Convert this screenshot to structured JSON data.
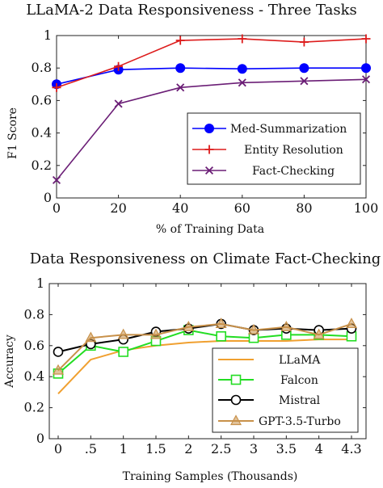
{
  "chart_data": [
    {
      "type": "line",
      "title": "LLaMA-2 Data Responsiveness - Three Tasks",
      "xlabel": "% of Training Data",
      "ylabel": "F1 Score",
      "xlim": [
        0,
        100
      ],
      "ylim": [
        0,
        1
      ],
      "xticks": [
        "0",
        "20",
        "40",
        "60",
        "80",
        "100"
      ],
      "yticks": [
        "0",
        "0.2",
        "0.4",
        "0.6",
        "0.8",
        "1"
      ],
      "x": [
        0,
        20,
        40,
        60,
        80,
        100
      ],
      "grid": false,
      "legend_position": "bottom-right",
      "series": [
        {
          "name": "Med-Summarization",
          "color": "#0000ff",
          "marker": "circle",
          "values": [
            0.7,
            0.79,
            0.8,
            0.795,
            0.8,
            0.8
          ]
        },
        {
          "name": "Entity Resolution",
          "color": "#dd1c1c",
          "marker": "plus",
          "values": [
            0.68,
            0.81,
            0.97,
            0.98,
            0.96,
            0.98
          ]
        },
        {
          "name": "Fact-Checking",
          "color": "#6b1e76",
          "marker": "cross",
          "values": [
            0.11,
            0.58,
            0.68,
            0.71,
            0.72,
            0.73
          ]
        }
      ]
    },
    {
      "type": "line",
      "title": "Data Responsiveness on Climate Fact-Checking",
      "xlabel": "Training Samples (Thousands)",
      "ylabel": "Accuracy",
      "ylim": [
        0,
        1
      ],
      "categories": [
        "0",
        ".5",
        "1",
        "1.5",
        "2",
        "2.5",
        "3",
        "3.5",
        "4",
        "4.3"
      ],
      "yticks": [
        "0",
        "0.2",
        "0.4",
        "0.6",
        "0.8",
        "1"
      ],
      "grid": false,
      "legend_position": "bottom-right",
      "series": [
        {
          "name": "LLaMA",
          "color": "#f0a030",
          "marker": "none",
          "values": [
            0.29,
            0.51,
            0.57,
            0.6,
            0.62,
            0.63,
            0.63,
            0.63,
            0.64,
            0.64
          ]
        },
        {
          "name": "Falcon",
          "color": "#22dd22",
          "marker": "square",
          "values": [
            0.42,
            0.6,
            0.56,
            0.63,
            0.7,
            0.66,
            0.65,
            0.67,
            0.67,
            0.66
          ]
        },
        {
          "name": "Mistral",
          "color": "#000000",
          "marker": "circle",
          "values": [
            0.56,
            0.61,
            0.64,
            0.69,
            0.71,
            0.74,
            0.7,
            0.71,
            0.7,
            0.71
          ]
        },
        {
          "name": "GPT-3.5-Turbo",
          "color": "#c8914a",
          "marker": "triangle",
          "values": [
            0.44,
            0.65,
            0.67,
            0.67,
            0.72,
            0.74,
            0.7,
            0.72,
            0.67,
            0.74
          ]
        }
      ]
    }
  ]
}
